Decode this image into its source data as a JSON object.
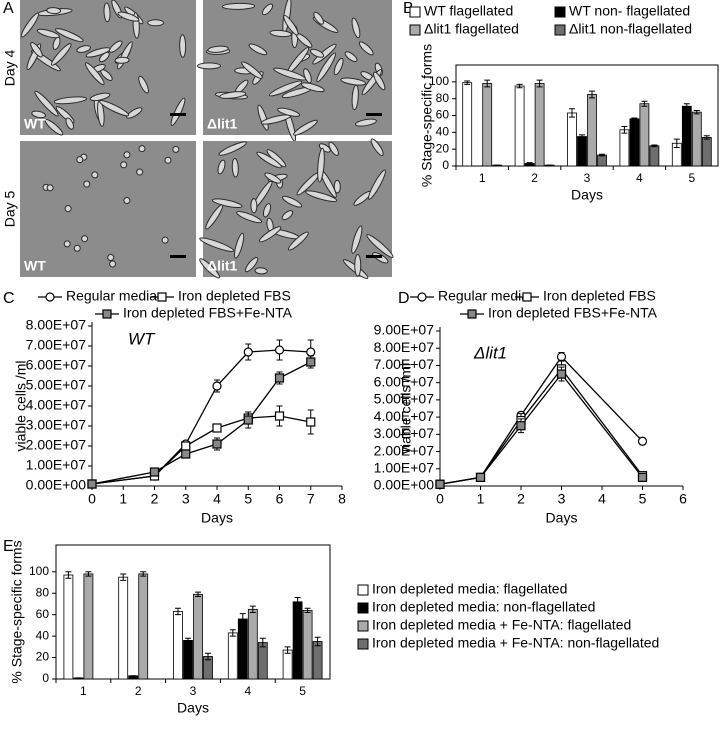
{
  "panel_labels": [
    "A",
    "B",
    "C",
    "D",
    "E"
  ],
  "micrographs": {
    "row_labels": [
      "Day 4",
      "Day 5"
    ],
    "column_labels": [
      "WT",
      "Δlit1"
    ]
  },
  "chart_data": [
    {
      "type": "bar",
      "ylabel": "% Stage-specific forms",
      "xlabel": "Days",
      "categories": [
        "1",
        "2",
        "3",
        "4",
        "5"
      ],
      "ylim": [
        0,
        120
      ],
      "yticks": [
        0,
        20,
        40,
        60,
        80,
        100
      ],
      "series": [
        {
          "name": "WT flagellated",
          "color": "#ffffff",
          "values": [
            99,
            95,
            63,
            43,
            27
          ],
          "errors": [
            2,
            2,
            5,
            4,
            5
          ]
        },
        {
          "name": "WT non- flagellated",
          "color": "#000000",
          "values": [
            0,
            3,
            35,
            56,
            71
          ],
          "errors": [
            0,
            1,
            2,
            1,
            3
          ]
        },
        {
          "name": "Δlit1 flagellated",
          "color": "#aaaaaa",
          "values": [
            98,
            98,
            85,
            74,
            64
          ],
          "errors": [
            4,
            4,
            4,
            3,
            2
          ]
        },
        {
          "name": "Δlit1 non-flagellated",
          "color": "#6e6e6e",
          "values": [
            1,
            1,
            13,
            24,
            34
          ],
          "errors": [
            0,
            0,
            1,
            1,
            2
          ]
        }
      ]
    },
    {
      "type": "line",
      "ylabel": "viable cells /ml",
      "xlabel": "Days",
      "annotation": "WT",
      "x": [
        0,
        2,
        3,
        4,
        5,
        6,
        7
      ],
      "xlim": [
        0,
        8
      ],
      "xticks": [
        0,
        1,
        2,
        3,
        4,
        5,
        6,
        7,
        8
      ],
      "ylim": [
        0,
        80000000
      ],
      "yticks": [
        {
          "value": 0,
          "label": "0.00E+00"
        },
        {
          "value": 10000000,
          "label": "1.00E+07"
        },
        {
          "value": 20000000,
          "label": "2.00E+07"
        },
        {
          "value": 30000000,
          "label": "3.00E+07"
        },
        {
          "value": 40000000,
          "label": "4.00E+07"
        },
        {
          "value": 50000000,
          "label": "5.00E+07"
        },
        {
          "value": 60000000,
          "label": "6.00E+07"
        },
        {
          "value": 70000000,
          "label": "7.00E+07"
        },
        {
          "value": 80000000,
          "label": "8.00E+07"
        }
      ],
      "series": [
        {
          "name": "Regular media",
          "color": "#ffffff",
          "marker": "circle",
          "values": [
            1000000,
            5000000,
            21000000,
            50000000,
            67000000,
            68000000,
            67000000
          ],
          "errors": [
            1000000,
            1000000,
            1500000,
            3000000,
            4000000,
            5000000,
            6000000
          ]
        },
        {
          "name": "Iron depleted FBS",
          "color": "#ffffff",
          "marker": "square",
          "values": [
            1000000,
            5000000,
            20000000,
            29000000,
            34000000,
            35000000,
            32000000
          ],
          "errors": [
            1000000,
            1000000,
            1000000,
            2000000,
            3000000,
            5000000,
            6000000
          ]
        },
        {
          "name": "Iron depleted FBS+Fe-NTA",
          "color": "#888888",
          "marker": "square",
          "values": [
            1000000,
            7000000,
            16000000,
            21000000,
            33000000,
            54000000,
            62000000
          ],
          "errors": [
            1000000,
            1000000,
            1000000,
            3000000,
            4000000,
            3000000,
            3000000
          ]
        }
      ]
    },
    {
      "type": "line",
      "ylabel": "viable cells /ml",
      "xlabel": "Days",
      "annotation": "Δlit1",
      "x": [
        0,
        1,
        2,
        3,
        5
      ],
      "xlim": [
        0,
        6
      ],
      "xticks": [
        0,
        1,
        2,
        3,
        4,
        5,
        6
      ],
      "ylim": [
        0,
        90000000
      ],
      "yticks": [
        {
          "value": 0,
          "label": "0.00E+00"
        },
        {
          "value": 10000000,
          "label": "1.00E+07"
        },
        {
          "value": 20000000,
          "label": "2.00E+07"
        },
        {
          "value": 30000000,
          "label": "3.00E+07"
        },
        {
          "value": 40000000,
          "label": "4.00E+07"
        },
        {
          "value": 50000000,
          "label": "5.00E+07"
        },
        {
          "value": 60000000,
          "label": "6.00E+07"
        },
        {
          "value": 70000000,
          "label": "7.00E+07"
        },
        {
          "value": 80000000,
          "label": "8.00E+07"
        },
        {
          "value": 90000000,
          "label": "9.00E+07"
        }
      ],
      "series": [
        {
          "name": "Regular media",
          "color": "#ffffff",
          "marker": "circle",
          "values": [
            1000000,
            5000000,
            41000000,
            75000000,
            26000000
          ],
          "errors": [
            500000,
            500000,
            2000000,
            2500000,
            2000000
          ]
        },
        {
          "name": "Iron depleted FBS",
          "color": "#ffffff",
          "marker": "square",
          "values": [
            1000000,
            5000000,
            38000000,
            68000000,
            6000000
          ],
          "errors": [
            500000,
            500000,
            4000000,
            5000000,
            2000000
          ]
        },
        {
          "name": "Iron depleted FBS+Fe-NTA",
          "color": "#888888",
          "marker": "square",
          "values": [
            1000000,
            5000000,
            35000000,
            65000000,
            5000000
          ],
          "errors": [
            500000,
            500000,
            4000000,
            4000000,
            1500000
          ]
        }
      ]
    },
    {
      "type": "bar",
      "ylabel": "% Stage-specific forms",
      "xlabel": "Days",
      "categories": [
        "1",
        "2",
        "3",
        "4",
        "5"
      ],
      "ylim": [
        0,
        125
      ],
      "yticks": [
        0,
        20,
        40,
        60,
        80,
        100
      ],
      "series": [
        {
          "name": "Iron depleted media: flagellated",
          "color": "#ffffff",
          "values": [
            97,
            95,
            63,
            43,
            27
          ],
          "errors": [
            3,
            3,
            3,
            3,
            3
          ]
        },
        {
          "name": "Iron depleted media: non-flagellated",
          "color": "#000000",
          "values": [
            1,
            3,
            36,
            56,
            72
          ],
          "errors": [
            0,
            0,
            2,
            5,
            4
          ]
        },
        {
          "name": "Iron depleted media + Fe-NTA: flagellated",
          "color": "#aaaaaa",
          "values": [
            98,
            98,
            79,
            65,
            64
          ],
          "errors": [
            2,
            2,
            2,
            3,
            2
          ]
        },
        {
          "name": "Iron depleted media + Fe-NTA: non-flagellated",
          "color": "#6e6e6e",
          "values": [
            0,
            0,
            21,
            34,
            35
          ],
          "errors": [
            0,
            0,
            3,
            4,
            4
          ]
        }
      ]
    }
  ]
}
